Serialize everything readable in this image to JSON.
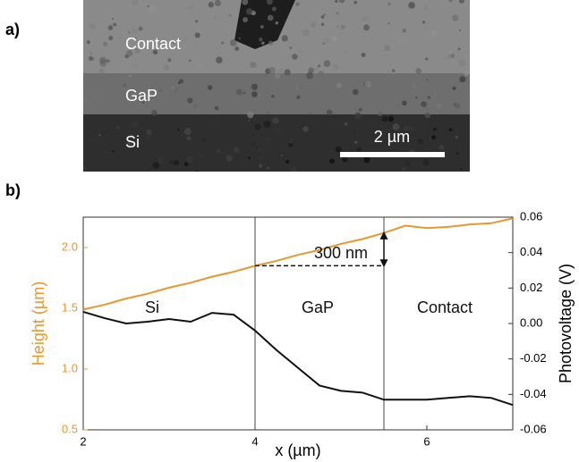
{
  "figure": {
    "panel_a": {
      "label": "a)",
      "regions": [
        "Contact",
        "GaP",
        "Si"
      ],
      "scale_bar": "2 µm"
    },
    "panel_b": {
      "label": "b)"
    }
  },
  "chart_data": {
    "type": "line",
    "x_label": "x (µm)",
    "y_label": "Height (µm)",
    "y2_label": "Photovoltage (V)",
    "annotations": [
      "Si",
      "GaP",
      "Contact",
      "300 nm"
    ],
    "x": [
      2,
      2.25,
      2.5,
      2.75,
      3,
      3.25,
      3.5,
      3.75,
      4,
      4.25,
      4.5,
      4.75,
      5,
      5.25,
      5.5,
      5.75,
      6,
      6.25,
      6.5,
      6.75,
      7
    ],
    "series": [
      {
        "name": "Height",
        "color": "#e8962e",
        "axis": "y",
        "values": [
          1.49,
          1.53,
          1.58,
          1.62,
          1.67,
          1.71,
          1.76,
          1.8,
          1.85,
          1.89,
          1.94,
          1.98,
          2.03,
          2.07,
          2.12,
          2.18,
          2.16,
          2.17,
          2.19,
          2.2,
          2.24
        ]
      },
      {
        "name": "Photovoltage",
        "color": "#111111",
        "axis": "y2",
        "values": [
          0.0066,
          0.003,
          0.0,
          0.001,
          0.0025,
          0.001,
          0.006,
          0.005,
          -0.004,
          -0.015,
          -0.025,
          -0.035,
          -0.038,
          -0.039,
          -0.043,
          -0.043,
          -0.043,
          -0.042,
          -0.041,
          -0.042,
          -0.046
        ]
      }
    ],
    "xlim": [
      2,
      7
    ],
    "xticks": [
      2,
      4,
      6
    ],
    "ylim": [
      0.5,
      2.25
    ],
    "yticks": [
      {
        "value": 0.5,
        "label": "0.5"
      },
      {
        "value": 1,
        "label": "1.0"
      },
      {
        "value": 1.5,
        "label": "1.5"
      },
      {
        "value": 2,
        "label": "2.0"
      }
    ],
    "y2lim": [
      -0.06,
      0.06
    ],
    "y2ticks": [
      -0.06,
      -0.04,
      -0.02,
      {
        "value": 0,
        "label": "0.00"
      },
      0.02,
      0.04,
      0.06
    ],
    "vlines": [
      4,
      5.5
    ]
  }
}
